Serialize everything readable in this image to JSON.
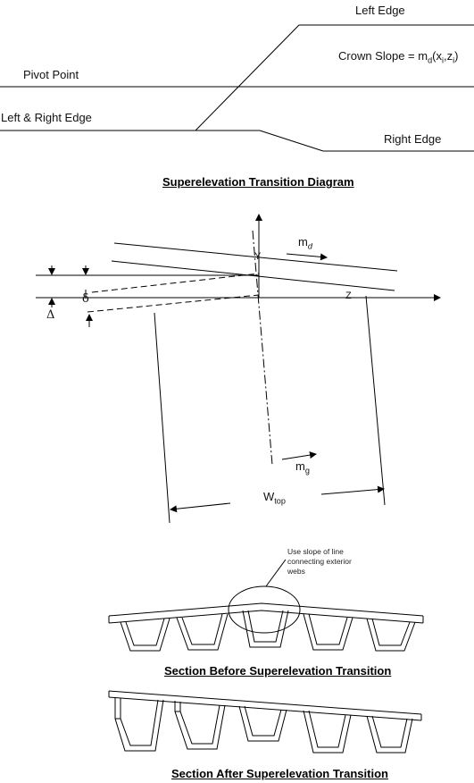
{
  "transition": {
    "left_edge": "Left Edge",
    "crown_slope_prefix": "Crown Slope = m",
    "crown_slope_sub": "d",
    "crown_slope_args": "(x",
    "crown_slope_sub_i1": "i",
    "crown_slope_comma": ",z",
    "crown_slope_sub_i2": "i",
    "crown_slope_close": ")",
    "pivot_point": "Pivot Point",
    "left_right_edge": "Left & Right Edge",
    "right_edge": "Right Edge",
    "caption": "Superelevation Transition Diagram"
  },
  "geometry_labels": {
    "y_axis": "Y",
    "z_axis": "Z",
    "md_main": "m",
    "md_sub": "d",
    "mg_main": "m",
    "mg_sub": "g",
    "delta_small": "δ",
    "delta_big": "Δ",
    "wtop_main": "W",
    "wtop_sub": "top"
  },
  "section_before": {
    "note": [
      "Use slope of line",
      "connecting exterior",
      "webs"
    ],
    "caption": "Section Before Superelevation Transition"
  },
  "section_after": {
    "caption": "Section After Superelevation Transition"
  }
}
